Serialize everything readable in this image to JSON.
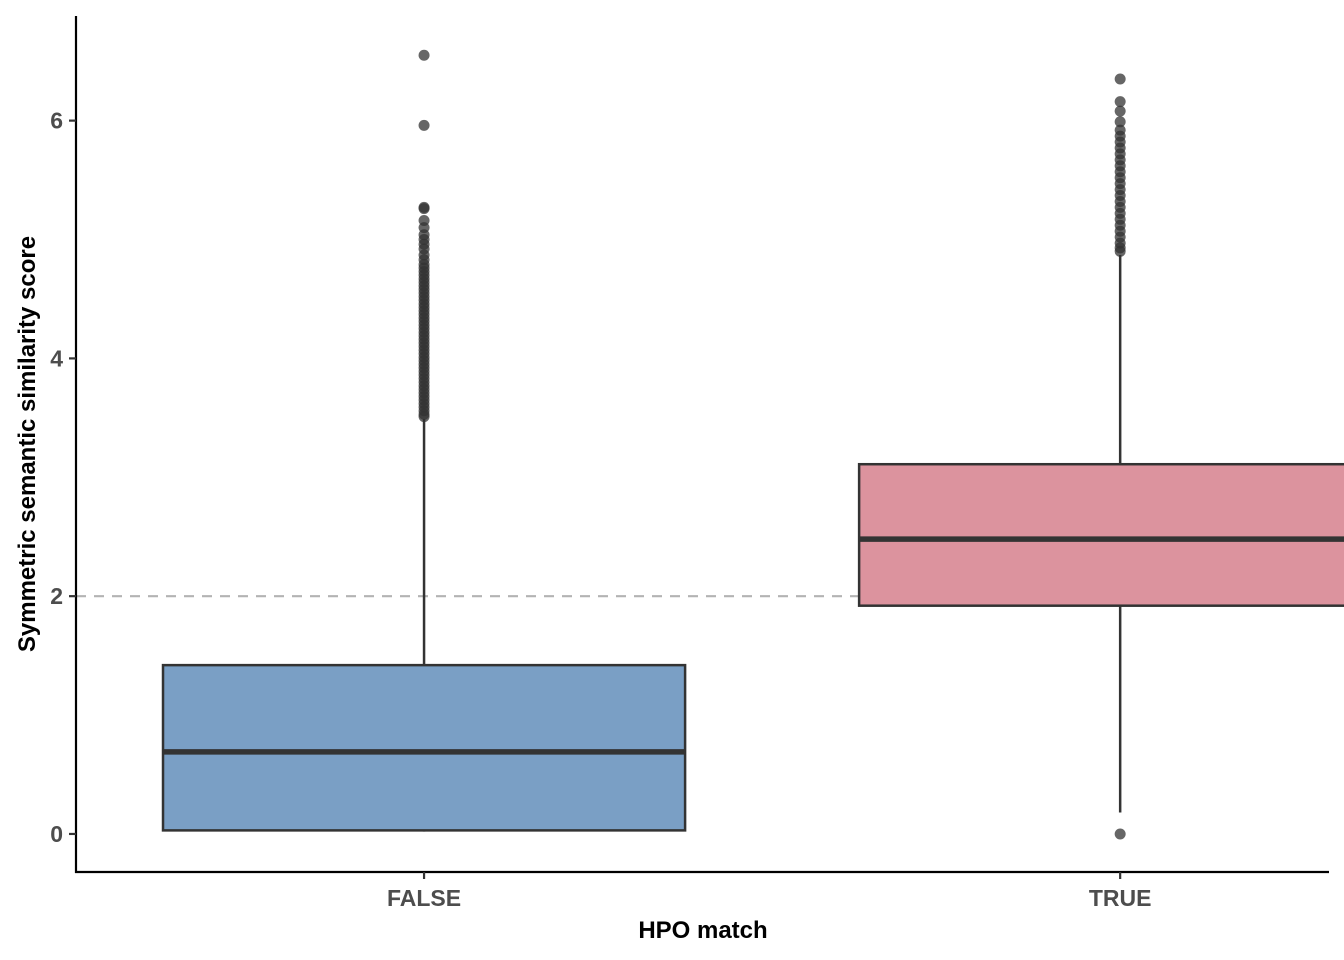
{
  "chart_data": {
    "type": "boxplot",
    "xlabel": "HPO match",
    "ylabel": "Symmetric semantic similarity score",
    "categories": [
      "FALSE",
      "TRUE"
    ],
    "ylim": [
      -0.32,
      6.88
    ],
    "yticks": [
      0,
      2,
      4,
      6
    ],
    "reference_line": {
      "y": 2,
      "style": "dashed",
      "color": "#b3b3b3"
    },
    "grid": false,
    "legend": "none",
    "boxes": [
      {
        "category": "FALSE",
        "color": "#7a9fc5",
        "whisker_low": 0.02,
        "q1": 0.03,
        "median": 0.69,
        "q3": 1.42,
        "whisker_high": 3.49,
        "outliers": [
          6.55,
          5.96,
          5.27,
          5.26,
          5.16,
          5.1,
          5.04,
          5.0,
          4.96,
          4.92,
          4.87,
          4.83,
          4.79,
          4.76,
          4.73,
          4.7,
          4.67,
          4.64,
          4.61,
          4.58,
          4.55,
          4.52,
          4.49,
          4.46,
          4.43,
          4.4,
          4.37,
          4.34,
          4.31,
          4.28,
          4.25,
          4.22,
          4.19,
          4.16,
          4.13,
          4.1,
          4.07,
          4.04,
          4.01,
          3.98,
          3.95,
          3.92,
          3.89,
          3.86,
          3.83,
          3.8,
          3.77,
          3.74,
          3.71,
          3.68,
          3.65,
          3.62,
          3.59,
          3.56,
          3.53,
          3.51
        ]
      },
      {
        "category": "TRUE",
        "color": "#dc939e",
        "whisker_low": 0.18,
        "q1": 1.92,
        "median": 2.48,
        "q3": 3.11,
        "whisker_high": 4.87,
        "outliers": [
          0.0,
          6.35,
          6.16,
          6.08,
          5.99,
          5.92,
          5.87,
          5.82,
          5.77,
          5.72,
          5.67,
          5.62,
          5.57,
          5.52,
          5.47,
          5.42,
          5.37,
          5.32,
          5.27,
          5.22,
          5.17,
          5.12,
          5.07,
          5.02,
          4.97,
          4.93,
          4.9
        ]
      }
    ]
  }
}
